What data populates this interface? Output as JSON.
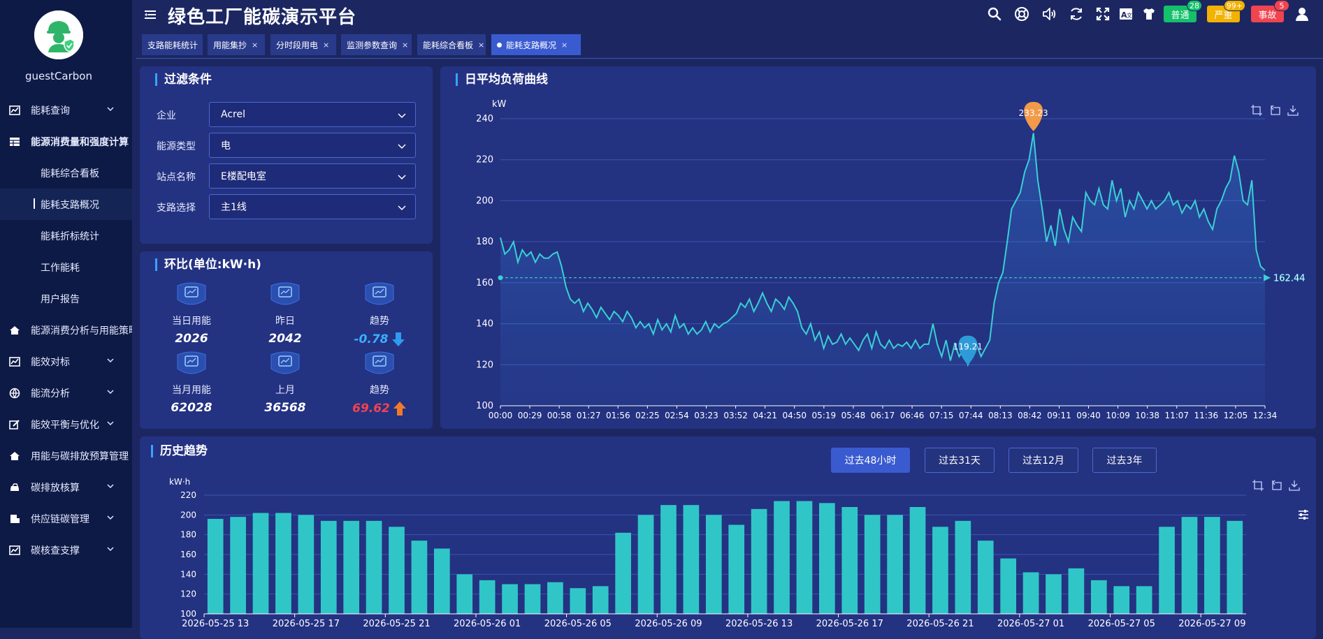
{
  "app": {
    "title": "绿色工厂能碳演示平台"
  },
  "user": {
    "name": "guestCarbon"
  },
  "sidebar": {
    "items": [
      {
        "label": "能耗查询",
        "has_chevron": true
      },
      {
        "label": "能源消费量和强度计算",
        "bold": true
      },
      {
        "label": "能耗综合看板",
        "sub": true
      },
      {
        "label": "能耗支路概况",
        "sub": true,
        "active": true
      },
      {
        "label": "能耗折标统计",
        "sub": true
      },
      {
        "label": "工作能耗",
        "sub": true
      },
      {
        "label": "用户报告",
        "sub": true
      },
      {
        "label": "能源消费分析与用能策略"
      },
      {
        "label": "能效对标",
        "has_chevron": true
      },
      {
        "label": "能流分析",
        "has_chevron": true
      },
      {
        "label": "能效平衡与优化",
        "has_chevron": true
      },
      {
        "label": "用能与碳排放预算管理"
      },
      {
        "label": "碳排放核算",
        "has_chevron": true
      },
      {
        "label": "供应链碳管理",
        "has_chevron": true
      },
      {
        "label": "碳核查支撑",
        "has_chevron": true
      }
    ]
  },
  "alarms": [
    {
      "label": "普通",
      "count": "28",
      "color": "#14c06a",
      "count_color": "#14c06a"
    },
    {
      "label": "严重",
      "count": "99+",
      "color": "#f2b200",
      "count_color": "#f2b200"
    },
    {
      "label": "事故",
      "count": "5",
      "color": "#f0444f",
      "count_color": "#f0444f"
    }
  ],
  "tabs": [
    {
      "label": "支路能耗统计",
      "closable": false
    },
    {
      "label": "用能集抄",
      "closable": true
    },
    {
      "label": "分时段用电",
      "closable": true
    },
    {
      "label": "监测参数查询",
      "closable": true
    },
    {
      "label": "能耗综合看板",
      "closable": true
    },
    {
      "label": "能耗支路概况",
      "closable": true,
      "active": true
    }
  ],
  "filter": {
    "title": "过滤条件",
    "fields": [
      {
        "label": "企业",
        "value": "Acrel"
      },
      {
        "label": "能源类型",
        "value": "电"
      },
      {
        "label": "站点名称",
        "value": "E楼配电室"
      },
      {
        "label": "支路选择",
        "value": "主1线"
      }
    ]
  },
  "ring": {
    "title": "环比(单位:kW·h)",
    "rows": [
      [
        {
          "label": "当日用能",
          "value": "2026",
          "icon": "calendar-day-icon"
        },
        {
          "label": "昨日",
          "value": "2042",
          "icon": "gear-clock-icon"
        },
        {
          "label": "趋势",
          "value": "-0.78",
          "icon": "trend-chart-icon",
          "trend": "down"
        }
      ],
      [
        {
          "label": "当月用能",
          "value": "62028",
          "icon": "calendar-month-icon"
        },
        {
          "label": "上月",
          "value": "36568",
          "icon": "document-icon"
        },
        {
          "label": "趋势",
          "value": "69.62",
          "icon": "trend-chart-icon",
          "trend": "up"
        }
      ]
    ]
  },
  "daily": {
    "title": "日平均负荷曲线"
  },
  "history": {
    "title": "历史趋势",
    "ranges": [
      {
        "label": "过去48小时",
        "active": true
      },
      {
        "label": "过去31天"
      },
      {
        "label": "过去12月"
      },
      {
        "label": "过去3年"
      }
    ]
  },
  "chart_data": [
    {
      "type": "line",
      "title": "日平均负荷曲线",
      "ylabel": "kW",
      "ylim": [
        100,
        240
      ],
      "yticks": [
        100,
        120,
        140,
        160,
        180,
        200,
        220,
        240
      ],
      "x_tick_labels": [
        "00:00",
        "00:29",
        "00:58",
        "01:27",
        "01:56",
        "02:25",
        "02:54",
        "03:23",
        "03:52",
        "04:21",
        "04:50",
        "05:19",
        "05:48",
        "06:17",
        "06:46",
        "07:15",
        "07:44",
        "08:13",
        "08:42",
        "09:11",
        "09:40",
        "10:09",
        "10:38",
        "11:07",
        "11:36",
        "12:05",
        "12:34"
      ],
      "x_range_minutes": [
        0,
        875
      ],
      "series_points": [
        [
          0,
          182
        ],
        [
          5,
          174
        ],
        [
          10,
          176
        ],
        [
          15,
          180
        ],
        [
          20,
          170
        ],
        [
          25,
          176
        ],
        [
          30,
          173
        ],
        [
          35,
          175
        ],
        [
          40,
          170
        ],
        [
          45,
          174
        ],
        [
          50,
          172
        ],
        [
          55,
          172
        ],
        [
          60,
          174
        ],
        [
          65,
          175
        ],
        [
          70,
          168
        ],
        [
          75,
          158
        ],
        [
          80,
          152
        ],
        [
          85,
          150
        ],
        [
          90,
          152
        ],
        [
          95,
          146
        ],
        [
          100,
          150
        ],
        [
          105,
          147
        ],
        [
          110,
          143
        ],
        [
          115,
          148
        ],
        [
          120,
          145
        ],
        [
          125,
          142
        ],
        [
          130,
          146
        ],
        [
          135,
          144
        ],
        [
          140,
          141
        ],
        [
          145,
          146
        ],
        [
          150,
          143
        ],
        [
          155,
          138
        ],
        [
          160,
          141
        ],
        [
          165,
          138
        ],
        [
          170,
          140
        ],
        [
          175,
          135
        ],
        [
          180,
          142
        ],
        [
          185,
          137
        ],
        [
          190,
          140
        ],
        [
          195,
          136
        ],
        [
          200,
          144
        ],
        [
          205,
          138
        ],
        [
          210,
          140
        ],
        [
          215,
          135
        ],
        [
          220,
          138
        ],
        [
          225,
          135
        ],
        [
          230,
          137
        ],
        [
          235,
          141
        ],
        [
          240,
          136
        ],
        [
          245,
          140
        ],
        [
          250,
          138
        ],
        [
          255,
          140
        ],
        [
          260,
          141
        ],
        [
          265,
          143
        ],
        [
          270,
          145
        ],
        [
          275,
          150
        ],
        [
          280,
          148
        ],
        [
          285,
          152
        ],
        [
          290,
          146
        ],
        [
          295,
          150
        ],
        [
          300,
          155
        ],
        [
          305,
          150
        ],
        [
          310,
          146
        ],
        [
          315,
          152
        ],
        [
          320,
          150
        ],
        [
          325,
          147
        ],
        [
          330,
          153
        ],
        [
          335,
          150
        ],
        [
          340,
          146
        ],
        [
          345,
          138
        ],
        [
          350,
          135
        ],
        [
          355,
          140
        ],
        [
          360,
          132
        ],
        [
          365,
          136
        ],
        [
          370,
          128
        ],
        [
          375,
          134
        ],
        [
          380,
          130
        ],
        [
          385,
          131
        ],
        [
          390,
          135
        ],
        [
          395,
          130
        ],
        [
          400,
          133
        ],
        [
          405,
          130
        ],
        [
          410,
          127
        ],
        [
          415,
          132
        ],
        [
          420,
          135
        ],
        [
          425,
          128
        ],
        [
          430,
          136
        ],
        [
          435,
          130
        ],
        [
          440,
          128
        ],
        [
          445,
          132
        ],
        [
          450,
          128
        ],
        [
          455,
          130
        ],
        [
          460,
          129
        ],
        [
          465,
          131
        ],
        [
          470,
          128
        ],
        [
          475,
          132
        ],
        [
          480,
          128
        ],
        [
          485,
          130
        ],
        [
          490,
          130
        ],
        [
          495,
          140
        ],
        [
          500,
          130
        ],
        [
          505,
          124
        ],
        [
          510,
          132
        ],
        [
          515,
          122
        ],
        [
          520,
          130
        ],
        [
          525,
          124
        ],
        [
          530,
          128
        ],
        [
          535,
          120
        ],
        [
          540,
          125
        ],
        [
          545,
          130
        ],
        [
          550,
          124
        ],
        [
          555,
          128
        ],
        [
          560,
          132
        ],
        [
          565,
          150
        ],
        [
          570,
          160
        ],
        [
          575,
          165
        ],
        [
          580,
          180
        ],
        [
          585,
          196
        ],
        [
          590,
          200
        ],
        [
          595,
          204
        ],
        [
          600,
          214
        ],
        [
          605,
          220
        ],
        [
          610,
          233
        ],
        [
          615,
          210
        ],
        [
          620,
          196
        ],
        [
          625,
          180
        ],
        [
          630,
          188
        ],
        [
          635,
          178
        ],
        [
          640,
          196
        ],
        [
          645,
          186
        ],
        [
          650,
          180
        ],
        [
          655,
          192
        ],
        [
          660,
          188
        ],
        [
          665,
          185
        ],
        [
          670,
          204
        ],
        [
          675,
          200
        ],
        [
          680,
          198
        ],
        [
          685,
          206
        ],
        [
          690,
          198
        ],
        [
          695,
          196
        ],
        [
          700,
          210
        ],
        [
          705,
          200
        ],
        [
          710,
          206
        ],
        [
          715,
          192
        ],
        [
          720,
          200
        ],
        [
          725,
          196
        ],
        [
          730,
          204
        ],
        [
          735,
          200
        ],
        [
          740,
          196
        ],
        [
          745,
          200
        ],
        [
          750,
          196
        ],
        [
          755,
          198
        ],
        [
          760,
          200
        ],
        [
          765,
          204
        ],
        [
          770,
          198
        ],
        [
          775,
          200
        ],
        [
          780,
          194
        ],
        [
          785,
          198
        ],
        [
          790,
          196
        ],
        [
          795,
          200
        ],
        [
          800,
          192
        ],
        [
          805,
          196
        ],
        [
          810,
          190
        ],
        [
          815,
          186
        ],
        [
          820,
          196
        ],
        [
          825,
          200
        ],
        [
          830,
          206
        ],
        [
          835,
          210
        ],
        [
          840,
          222
        ],
        [
          845,
          214
        ],
        [
          850,
          200
        ],
        [
          855,
          198
        ],
        [
          860,
          210
        ],
        [
          865,
          176
        ],
        [
          870,
          168
        ],
        [
          875,
          166
        ]
      ],
      "max_marker": {
        "label": "233.23",
        "x": 610,
        "y": 233.23
      },
      "min_marker": {
        "label": "119.21",
        "x": 535,
        "y": 119.21
      },
      "average_line": {
        "label": "162.44",
        "value": 162.44
      }
    },
    {
      "type": "bar",
      "title": "历史趋势",
      "ylabel": "kW·h",
      "ylim": [
        100,
        220
      ],
      "yticks": [
        100,
        120,
        140,
        160,
        180,
        200,
        220
      ],
      "x_tick_labels": [
        "2026-05-25 13",
        "2026-05-25 17",
        "2026-05-25 21",
        "2026-05-26 01",
        "2026-05-26 05",
        "2026-05-26 09",
        "2026-05-26 13",
        "2026-05-26 17",
        "2026-05-26 21",
        "2026-05-27 01",
        "2026-05-27 05",
        "2026-05-27 09"
      ],
      "values": [
        196,
        198,
        202,
        202,
        200,
        194,
        194,
        194,
        188,
        174,
        166,
        140,
        134,
        130,
        130,
        132,
        126,
        128,
        182,
        200,
        210,
        210,
        200,
        190,
        206,
        214,
        214,
        212,
        208,
        200,
        200,
        208,
        188,
        194,
        174,
        156,
        142,
        140,
        146,
        134,
        128,
        128,
        188,
        198,
        198,
        194
      ]
    }
  ]
}
